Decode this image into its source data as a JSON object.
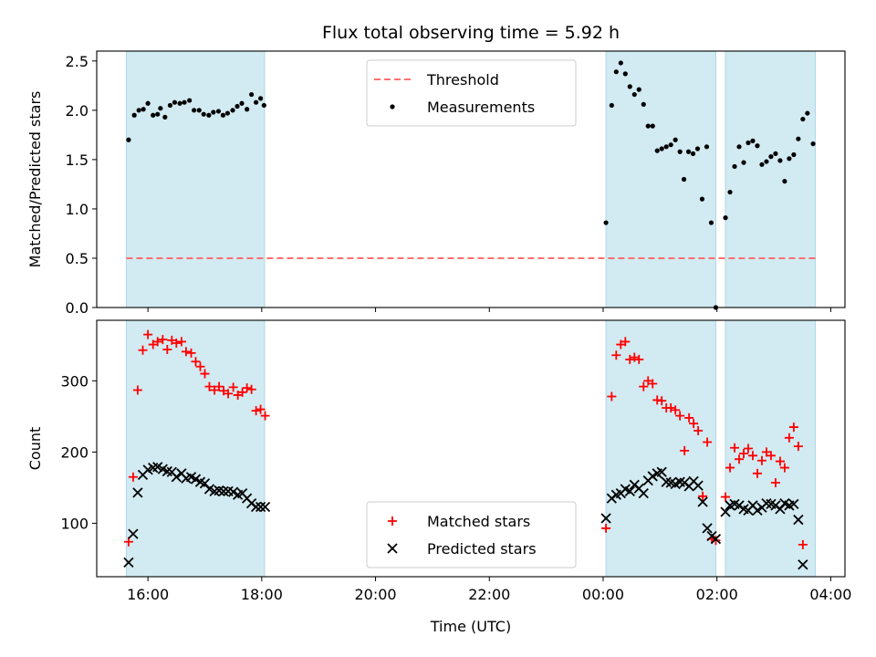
{
  "chart_data": {
    "title": "Flux total observing time = 5.92 h",
    "xlabel": "Time (UTC)",
    "x_unit": "hours since 00:00 UTC of first day",
    "xlim": [
      15.1,
      28.25
    ],
    "xticks": [
      {
        "value": 16,
        "label": "16:00"
      },
      {
        "value": 18,
        "label": "18:00"
      },
      {
        "value": 20,
        "label": "20:00"
      },
      {
        "value": 22,
        "label": "22:00"
      },
      {
        "value": 24,
        "label": "00:00"
      },
      {
        "value": 26,
        "label": "02:00"
      },
      {
        "value": 28,
        "label": "04:00"
      }
    ],
    "shaded_intervals": [
      [
        15.62,
        18.05
      ],
      [
        24.05,
        25.98
      ],
      [
        26.15,
        27.73
      ]
    ],
    "shade_color": "#add8e6",
    "panels": [
      {
        "type": "scatter",
        "ylabel": "Matched/Predicted stars",
        "ylim": [
          0,
          2.6
        ],
        "yticks": [
          "0.0",
          "0.5",
          "1.0",
          "1.5",
          "2.0",
          "2.5"
        ],
        "legend_position": "upper center",
        "threshold": {
          "name": "Threshold",
          "value": 0.5,
          "x_range": [
            15.62,
            27.73
          ],
          "color": "#ff7070"
        },
        "series": [
          {
            "name": "Measurements",
            "color": "#000000",
            "points": [
              [
                15.66,
                1.7
              ],
              [
                15.76,
                1.95
              ],
              [
                15.84,
                2.0
              ],
              [
                15.92,
                2.01
              ],
              [
                16.0,
                2.07
              ],
              [
                16.09,
                1.95
              ],
              [
                16.17,
                1.96
              ],
              [
                16.22,
                2.02
              ],
              [
                16.3,
                1.93
              ],
              [
                16.39,
                2.05
              ],
              [
                16.47,
                2.08
              ],
              [
                16.56,
                2.07
              ],
              [
                16.64,
                2.08
              ],
              [
                16.73,
                2.1
              ],
              [
                16.81,
                2.0
              ],
              [
                16.9,
                2.0
              ],
              [
                16.98,
                1.96
              ],
              [
                17.07,
                1.95
              ],
              [
                17.15,
                1.98
              ],
              [
                17.24,
                1.99
              ],
              [
                17.32,
                1.95
              ],
              [
                17.4,
                1.97
              ],
              [
                17.49,
                2.0
              ],
              [
                17.57,
                2.04
              ],
              [
                17.65,
                2.07
              ],
              [
                17.74,
                2.01
              ],
              [
                17.82,
                2.16
              ],
              [
                17.9,
                2.08
              ],
              [
                17.98,
                2.12
              ],
              [
                18.04,
                2.05
              ],
              [
                24.05,
                0.86
              ],
              [
                24.15,
                2.05
              ],
              [
                24.23,
                2.39
              ],
              [
                24.31,
                2.48
              ],
              [
                24.39,
                2.37
              ],
              [
                24.47,
                2.24
              ],
              [
                24.55,
                2.16
              ],
              [
                24.63,
                2.21
              ],
              [
                24.71,
                2.06
              ],
              [
                24.79,
                1.84
              ],
              [
                24.87,
                1.84
              ],
              [
                24.95,
                1.59
              ],
              [
                25.03,
                1.61
              ],
              [
                25.11,
                1.63
              ],
              [
                25.19,
                1.65
              ],
              [
                25.27,
                1.7
              ],
              [
                25.35,
                1.58
              ],
              [
                25.42,
                1.3
              ],
              [
                25.5,
                1.58
              ],
              [
                25.58,
                1.56
              ],
              [
                25.66,
                1.61
              ],
              [
                25.74,
                1.1
              ],
              [
                25.82,
                1.63
              ],
              [
                25.9,
                0.86
              ],
              [
                25.98,
                0.0
              ],
              [
                26.15,
                0.91
              ],
              [
                26.23,
                1.17
              ],
              [
                26.31,
                1.43
              ],
              [
                26.39,
                1.63
              ],
              [
                26.47,
                1.47
              ],
              [
                26.55,
                1.67
              ],
              [
                26.63,
                1.69
              ],
              [
                26.71,
                1.64
              ],
              [
                26.79,
                1.45
              ],
              [
                26.87,
                1.48
              ],
              [
                26.95,
                1.53
              ],
              [
                27.03,
                1.56
              ],
              [
                27.11,
                1.49
              ],
              [
                27.19,
                1.28
              ],
              [
                27.27,
                1.51
              ],
              [
                27.35,
                1.55
              ],
              [
                27.43,
                1.71
              ],
              [
                27.51,
                1.91
              ],
              [
                27.59,
                1.97
              ],
              [
                27.69,
                1.66
              ]
            ]
          }
        ]
      },
      {
        "type": "scatter",
        "ylabel": "Count",
        "ylim": [
          25,
          385
        ],
        "yticks": [
          "100",
          "200",
          "300"
        ],
        "legend_position": "lower center",
        "series": [
          {
            "name": "Matched stars",
            "color": "#ff0000",
            "marker": "plus",
            "points": [
              [
                15.66,
                74
              ],
              [
                15.74,
                165
              ],
              [
                15.82,
                287
              ],
              [
                15.91,
                343
              ],
              [
                16.0,
                365
              ],
              [
                16.09,
                351
              ],
              [
                16.17,
                355
              ],
              [
                16.26,
                358
              ],
              [
                16.34,
                344
              ],
              [
                16.42,
                357
              ],
              [
                16.5,
                353
              ],
              [
                16.59,
                355
              ],
              [
                16.67,
                341
              ],
              [
                16.76,
                339
              ],
              [
                16.84,
                327
              ],
              [
                16.92,
                320
              ],
              [
                17.0,
                310
              ],
              [
                17.08,
                292
              ],
              [
                17.17,
                287
              ],
              [
                17.25,
                292
              ],
              [
                17.33,
                286
              ],
              [
                17.41,
                282
              ],
              [
                17.5,
                291
              ],
              [
                17.58,
                280
              ],
              [
                17.66,
                284
              ],
              [
                17.74,
                290
              ],
              [
                17.82,
                288
              ],
              [
                17.9,
                258
              ],
              [
                17.98,
                260
              ],
              [
                18.06,
                251
              ],
              [
                24.05,
                93
              ],
              [
                24.15,
                278
              ],
              [
                24.23,
                336
              ],
              [
                24.31,
                351
              ],
              [
                24.39,
                355
              ],
              [
                24.47,
                330
              ],
              [
                24.55,
                333
              ],
              [
                24.63,
                330
              ],
              [
                24.71,
                292
              ],
              [
                24.79,
                300
              ],
              [
                24.87,
                296
              ],
              [
                24.95,
                273
              ],
              [
                25.03,
                272
              ],
              [
                25.11,
                262
              ],
              [
                25.19,
                262
              ],
              [
                25.27,
                259
              ],
              [
                25.35,
                251
              ],
              [
                25.43,
                202
              ],
              [
                25.51,
                248
              ],
              [
                25.59,
                240
              ],
              [
                25.67,
                230
              ],
              [
                25.75,
                138
              ],
              [
                25.83,
                214
              ],
              [
                25.91,
                78
              ],
              [
                25.98,
                76
              ],
              [
                26.15,
                137
              ],
              [
                26.23,
                178
              ],
              [
                26.31,
                206
              ],
              [
                26.39,
                190
              ],
              [
                26.47,
                198
              ],
              [
                26.55,
                205
              ],
              [
                26.63,
                195
              ],
              [
                26.71,
                170
              ],
              [
                26.79,
                188
              ],
              [
                26.87,
                200
              ],
              [
                26.95,
                195
              ],
              [
                27.03,
                157
              ],
              [
                27.11,
                187
              ],
              [
                27.19,
                178
              ],
              [
                27.27,
                220
              ],
              [
                27.35,
                235
              ],
              [
                27.43,
                208
              ],
              [
                27.51,
                70
              ]
            ]
          },
          {
            "name": "Predicted stars",
            "color": "#000000",
            "marker": "x",
            "points": [
              [
                15.66,
                45
              ],
              [
                15.74,
                85
              ],
              [
                15.82,
                143
              ],
              [
                15.91,
                168
              ],
              [
                16.0,
                175
              ],
              [
                16.09,
                178
              ],
              [
                16.17,
                179
              ],
              [
                16.26,
                176
              ],
              [
                16.34,
                173
              ],
              [
                16.42,
                172
              ],
              [
                16.5,
                165
              ],
              [
                16.59,
                170
              ],
              [
                16.67,
                163
              ],
              [
                16.76,
                165
              ],
              [
                16.84,
                162
              ],
              [
                16.92,
                158
              ],
              [
                17.0,
                156
              ],
              [
                17.08,
                148
              ],
              [
                17.17,
                145
              ],
              [
                17.25,
                146
              ],
              [
                17.33,
                145
              ],
              [
                17.41,
                145
              ],
              [
                17.5,
                144
              ],
              [
                17.58,
                140
              ],
              [
                17.66,
                142
              ],
              [
                17.74,
                135
              ],
              [
                17.82,
                128
              ],
              [
                17.9,
                123
              ],
              [
                17.98,
                123
              ],
              [
                18.06,
                123
              ],
              [
                24.05,
                107
              ],
              [
                24.15,
                135
              ],
              [
                24.23,
                140
              ],
              [
                24.31,
                142
              ],
              [
                24.39,
                148
              ],
              [
                24.47,
                145
              ],
              [
                24.55,
                154
              ],
              [
                24.63,
                149
              ],
              [
                24.71,
                142
              ],
              [
                24.79,
                160
              ],
              [
                24.87,
                166
              ],
              [
                24.95,
                170
              ],
              [
                25.03,
                172
              ],
              [
                25.11,
                158
              ],
              [
                25.19,
                157
              ],
              [
                25.27,
                155
              ],
              [
                25.35,
                158
              ],
              [
                25.43,
                157
              ],
              [
                25.51,
                152
              ],
              [
                25.59,
                159
              ],
              [
                25.67,
                153
              ],
              [
                25.75,
                130
              ],
              [
                25.83,
                93
              ],
              [
                25.91,
                82
              ],
              [
                25.98,
                78
              ],
              [
                26.15,
                116
              ],
              [
                26.23,
                125
              ],
              [
                26.31,
                127
              ],
              [
                26.39,
                125
              ],
              [
                26.47,
                120
              ],
              [
                26.55,
                118
              ],
              [
                26.63,
                125
              ],
              [
                26.71,
                118
              ],
              [
                26.79,
                122
              ],
              [
                26.87,
                128
              ],
              [
                26.95,
                127
              ],
              [
                27.03,
                125
              ],
              [
                27.11,
                120
              ],
              [
                27.19,
                128
              ],
              [
                27.27,
                125
              ],
              [
                27.35,
                127
              ],
              [
                27.43,
                105
              ],
              [
                27.51,
                42
              ]
            ]
          }
        ]
      }
    ]
  }
}
